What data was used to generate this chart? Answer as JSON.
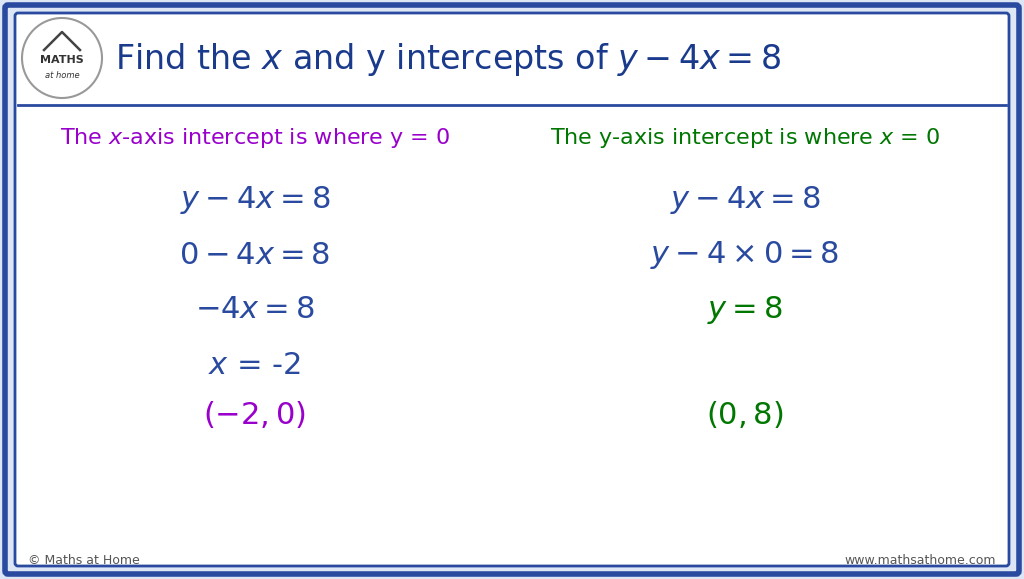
{
  "title": "Find the $x$ and y intercepts of $y - 4x = 8$",
  "title_color": "#1a3a8c",
  "title_fontsize": 24,
  "bg_color": "#dce6f5",
  "inner_bg_color": "#ffffff",
  "border_color": "#2a4aa0",
  "purple": "#9900cc",
  "green": "#007700",
  "blue": "#2a4aa0",
  "footer_left": "© Maths at Home",
  "footer_right": "www.mathsathome.com",
  "left_header": "The $x$-axis intercept is where y = 0",
  "right_header": "The y-axis intercept is where $x$ = 0",
  "left_lines": [
    "$y - 4x = 8$",
    "$0 - 4x = 8$",
    "$-4x = 8$",
    "$x$ = -2",
    "$(-2, 0)$"
  ],
  "right_lines": [
    "$y - 4x = 8$",
    "$y -4 \\times 0 = 8$",
    "$y = 8$",
    "",
    "$(0, 8)$"
  ],
  "left_line_colors": [
    "#2a4aa0",
    "#2a4aa0",
    "#2a4aa0",
    "#2a4aa0",
    "#9900cc"
  ],
  "right_line_colors": [
    "#2a4aa0",
    "#2a4aa0",
    "#007700",
    "#007700",
    "#007700"
  ]
}
